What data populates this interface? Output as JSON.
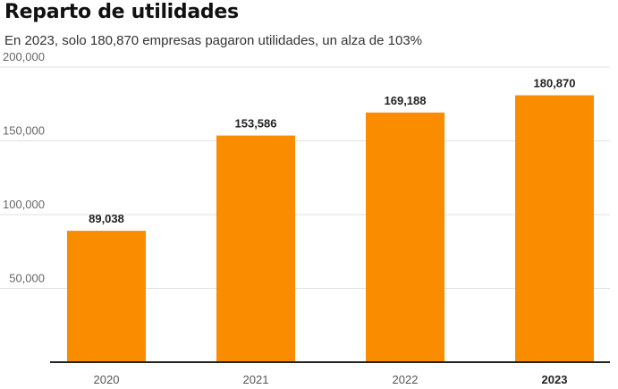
{
  "header": {
    "title": "Reparto de utilidades",
    "subtitle": "En 2023, solo 180,870 empresas pagaron utilidades, un alza de 103%"
  },
  "colors": {
    "bar": "#FA8C00",
    "grid": "#E2E2E2",
    "axis": "#222222"
  },
  "chart_data": {
    "type": "bar",
    "title": "Reparto de utilidades",
    "subtitle": "En 2023, solo 180,870 empresas pagaron utilidades, un alza de 103%",
    "categories": [
      "2020",
      "2021",
      "2022",
      "2023"
    ],
    "values": [
      89038,
      153586,
      169188,
      180870
    ],
    "value_labels": [
      "89,038",
      "153,586",
      "169,188",
      "180,870"
    ],
    "y_ticks": [
      50000,
      100000,
      150000,
      200000
    ],
    "y_tick_labels": [
      "50,000",
      "100,000",
      "150,000",
      "200,000"
    ],
    "ylim": [
      0,
      200000
    ],
    "highlighted_category": "2023",
    "grid": true,
    "legend": "none",
    "xlabel": "",
    "ylabel": ""
  }
}
